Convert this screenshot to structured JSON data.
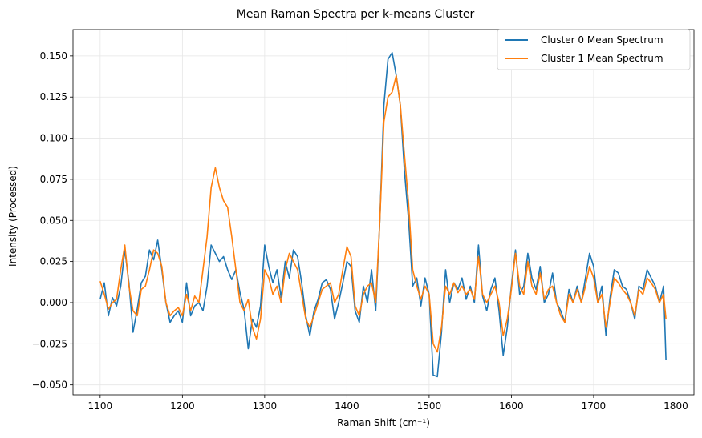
{
  "chart_data": {
    "type": "line",
    "title": "Mean Raman Spectra per k-means Cluster",
    "xlabel": "Raman Shift (cm⁻¹)",
    "ylabel": "Intensity (Processed)",
    "xlim": [
      1067,
      1822
    ],
    "ylim": [
      -0.056,
      0.166
    ],
    "xticks": [
      1100,
      1200,
      1300,
      1400,
      1500,
      1600,
      1700,
      1800
    ],
    "yticks": [
      -0.05,
      -0.025,
      0.0,
      0.025,
      0.05,
      0.075,
      0.1,
      0.125,
      0.15
    ],
    "ytick_labels": [
      "−0.050",
      "−0.025",
      "0.000",
      "0.025",
      "0.050",
      "0.075",
      "0.100",
      "0.125",
      "0.150"
    ],
    "grid": true,
    "legend_position": "top-right",
    "colors": {
      "cluster0": "#1f77b4",
      "cluster1": "#ff7f0e",
      "grid": "#e6e6e6"
    },
    "series": [
      {
        "name": "Cluster 0 Mean Spectrum",
        "x": [
          1100,
          1105,
          1110,
          1115,
          1120,
          1125,
          1130,
          1135,
          1140,
          1145,
          1150,
          1155,
          1160,
          1165,
          1170,
          1175,
          1180,
          1185,
          1190,
          1195,
          1200,
          1205,
          1210,
          1215,
          1220,
          1225,
          1230,
          1235,
          1240,
          1245,
          1250,
          1255,
          1260,
          1265,
          1270,
          1275,
          1280,
          1285,
          1290,
          1295,
          1300,
          1305,
          1310,
          1315,
          1320,
          1325,
          1330,
          1335,
          1340,
          1345,
          1350,
          1355,
          1360,
          1365,
          1370,
          1375,
          1380,
          1385,
          1390,
          1395,
          1400,
          1405,
          1410,
          1415,
          1420,
          1425,
          1430,
          1435,
          1440,
          1445,
          1450,
          1455,
          1460,
          1465,
          1470,
          1475,
          1480,
          1485,
          1490,
          1495,
          1500,
          1505,
          1510,
          1515,
          1520,
          1525,
          1530,
          1535,
          1540,
          1545,
          1550,
          1555,
          1560,
          1565,
          1570,
          1575,
          1580,
          1585,
          1590,
          1595,
          1600,
          1605,
          1610,
          1615,
          1620,
          1625,
          1630,
          1635,
          1640,
          1645,
          1650,
          1655,
          1660,
          1665,
          1670,
          1675,
          1680,
          1685,
          1690,
          1695,
          1700,
          1705,
          1710,
          1715,
          1720,
          1725,
          1730,
          1735,
          1740,
          1745,
          1750,
          1755,
          1760,
          1765,
          1770,
          1775,
          1780,
          1785,
          1788
        ],
        "y": [
          0.002,
          0.012,
          -0.008,
          0.003,
          -0.002,
          0.01,
          0.032,
          0.012,
          -0.018,
          -0.004,
          0.012,
          0.016,
          0.032,
          0.026,
          0.038,
          0.02,
          0.0,
          -0.012,
          -0.008,
          -0.005,
          -0.012,
          0.012,
          -0.008,
          -0.002,
          0.0,
          -0.005,
          0.01,
          0.035,
          0.03,
          0.025,
          0.028,
          0.02,
          0.014,
          0.02,
          0.006,
          -0.004,
          -0.028,
          -0.01,
          -0.015,
          -0.002,
          0.035,
          0.022,
          0.012,
          0.02,
          0.003,
          0.025,
          0.015,
          0.032,
          0.028,
          0.012,
          -0.008,
          -0.02,
          -0.005,
          0.002,
          0.012,
          0.014,
          0.008,
          -0.01,
          0.0,
          0.012,
          0.025,
          0.022,
          -0.005,
          -0.012,
          0.01,
          0.0,
          0.02,
          -0.005,
          0.05,
          0.12,
          0.148,
          0.152,
          0.138,
          0.12,
          0.08,
          0.05,
          0.01,
          0.015,
          -0.002,
          0.015,
          0.005,
          -0.044,
          -0.045,
          -0.018,
          0.02,
          0.0,
          0.012,
          0.008,
          0.015,
          0.002,
          0.01,
          0.0,
          0.035,
          0.004,
          -0.005,
          0.008,
          0.015,
          -0.005,
          -0.032,
          -0.015,
          0.01,
          0.032,
          0.005,
          0.01,
          0.03,
          0.015,
          0.008,
          0.022,
          0.0,
          0.005,
          0.018,
          0.0,
          -0.005,
          -0.012,
          0.008,
          0.0,
          0.01,
          0.0,
          0.015,
          0.03,
          0.022,
          0.0,
          0.01,
          -0.02,
          0.003,
          0.02,
          0.018,
          0.01,
          0.008,
          0.0,
          -0.01,
          0.01,
          0.008,
          0.02,
          0.015,
          0.01,
          0.0,
          0.01,
          -0.035
        ]
      },
      {
        "name": "Cluster 1 Mean Spectrum",
        "x": [
          1100,
          1105,
          1110,
          1115,
          1120,
          1125,
          1130,
          1135,
          1140,
          1145,
          1150,
          1155,
          1160,
          1165,
          1170,
          1175,
          1180,
          1185,
          1190,
          1195,
          1200,
          1205,
          1210,
          1215,
          1220,
          1225,
          1230,
          1235,
          1240,
          1245,
          1250,
          1255,
          1260,
          1265,
          1270,
          1275,
          1280,
          1285,
          1290,
          1295,
          1300,
          1305,
          1310,
          1315,
          1320,
          1325,
          1330,
          1335,
          1340,
          1345,
          1350,
          1355,
          1360,
          1365,
          1370,
          1375,
          1380,
          1385,
          1390,
          1395,
          1400,
          1405,
          1410,
          1415,
          1420,
          1425,
          1430,
          1435,
          1440,
          1445,
          1450,
          1455,
          1460,
          1465,
          1470,
          1475,
          1480,
          1485,
          1490,
          1495,
          1500,
          1505,
          1510,
          1515,
          1520,
          1525,
          1530,
          1535,
          1540,
          1545,
          1550,
          1555,
          1560,
          1565,
          1570,
          1575,
          1580,
          1585,
          1590,
          1595,
          1600,
          1605,
          1610,
          1615,
          1620,
          1625,
          1630,
          1635,
          1640,
          1645,
          1650,
          1655,
          1660,
          1665,
          1670,
          1675,
          1680,
          1685,
          1690,
          1695,
          1700,
          1705,
          1710,
          1715,
          1720,
          1725,
          1730,
          1735,
          1740,
          1745,
          1750,
          1755,
          1760,
          1765,
          1770,
          1775,
          1780,
          1785,
          1788
        ],
        "y": [
          0.013,
          0.005,
          -0.004,
          0.0,
          0.002,
          0.02,
          0.035,
          0.01,
          -0.005,
          -0.008,
          0.008,
          0.01,
          0.02,
          0.032,
          0.03,
          0.022,
          0.0,
          -0.008,
          -0.005,
          -0.003,
          -0.008,
          0.005,
          -0.005,
          0.004,
          0.0,
          0.02,
          0.04,
          0.07,
          0.082,
          0.07,
          0.062,
          0.058,
          0.04,
          0.02,
          0.0,
          -0.005,
          0.002,
          -0.015,
          -0.022,
          -0.01,
          0.02,
          0.015,
          0.005,
          0.01,
          0.0,
          0.02,
          0.03,
          0.025,
          0.02,
          0.005,
          -0.01,
          -0.015,
          -0.008,
          0.0,
          0.008,
          0.01,
          0.012,
          0.0,
          0.005,
          0.02,
          0.034,
          0.028,
          -0.002,
          -0.008,
          0.005,
          0.01,
          0.012,
          0.0,
          0.05,
          0.11,
          0.125,
          0.128,
          0.138,
          0.12,
          0.09,
          0.06,
          0.02,
          0.01,
          0.002,
          0.01,
          0.005,
          -0.025,
          -0.03,
          -0.015,
          0.01,
          0.005,
          0.012,
          0.006,
          0.01,
          0.005,
          0.008,
          0.002,
          0.028,
          0.005,
          0.0,
          0.005,
          0.01,
          0.0,
          -0.02,
          -0.01,
          0.008,
          0.03,
          0.01,
          0.005,
          0.025,
          0.01,
          0.005,
          0.018,
          0.002,
          0.008,
          0.01,
          0.0,
          -0.008,
          -0.012,
          0.005,
          0.0,
          0.008,
          0.0,
          0.01,
          0.022,
          0.015,
          0.0,
          0.005,
          -0.015,
          0.0,
          0.015,
          0.012,
          0.008,
          0.005,
          0.0,
          -0.008,
          0.008,
          0.005,
          0.015,
          0.012,
          0.008,
          0.0,
          0.005,
          -0.01
        ]
      }
    ]
  }
}
